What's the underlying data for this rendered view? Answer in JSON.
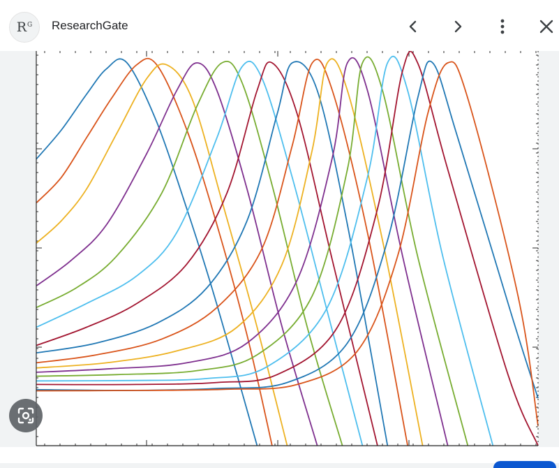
{
  "header": {
    "avatar_text": "R",
    "avatar_sup": "G",
    "site_name": "ResearchGate",
    "prev_icon": "chevron-left-icon",
    "next_icon": "chevron-right-icon",
    "more_icon": "more-vert-icon",
    "close_icon": "close-icon"
  },
  "lens": {
    "icon": "camera-lens-icon"
  },
  "colors": {
    "series": [
      "#1f77b4",
      "#d95319",
      "#edb120",
      "#7e2f8e",
      "#77ac30",
      "#4dbeee",
      "#a2142f"
    ]
  },
  "chart_data": {
    "type": "line",
    "title": "",
    "xlabel": "",
    "ylabel": "",
    "grid": false,
    "legend": "none",
    "note": "Axis tick labels are cropped out of view; values are in relative plot units (x: 0–100 of visible width, y: 0–100 of visible height).",
    "series": [
      {
        "values": [
          [
            0,
            72.6
          ],
          [
            5,
            80
          ],
          [
            10,
            89
          ],
          [
            14,
            95.5
          ],
          [
            18,
            97.1
          ],
          [
            24,
            82
          ],
          [
            30,
            60
          ],
          [
            35,
            40
          ],
          [
            40,
            18
          ],
          [
            44,
            0
          ]
        ]
      },
      {
        "values": [
          [
            0,
            61.5
          ],
          [
            5,
            68
          ],
          [
            10,
            78
          ],
          [
            15,
            88
          ],
          [
            20,
            96.5
          ],
          [
            24,
            96.5
          ],
          [
            30,
            80
          ],
          [
            36,
            56
          ],
          [
            42,
            28
          ],
          [
            47,
            0
          ]
        ]
      },
      {
        "values": [
          [
            0,
            51.3
          ],
          [
            5,
            57
          ],
          [
            10,
            65
          ],
          [
            16,
            79
          ],
          [
            22,
            93
          ],
          [
            26,
            96.5
          ],
          [
            31,
            88
          ],
          [
            37,
            62
          ],
          [
            44,
            30
          ],
          [
            50,
            0
          ]
        ]
      },
      {
        "values": [
          [
            0,
            40.5
          ],
          [
            7,
            47
          ],
          [
            14,
            56
          ],
          [
            22,
            74
          ],
          [
            28,
            90
          ],
          [
            32,
            97
          ],
          [
            36,
            90
          ],
          [
            42,
            65
          ],
          [
            49,
            30
          ],
          [
            56,
            0
          ]
        ]
      },
      {
        "values": [
          [
            0,
            35
          ],
          [
            8,
            40
          ],
          [
            16,
            48
          ],
          [
            25,
            64
          ],
          [
            32,
            86
          ],
          [
            37,
            97
          ],
          [
            41,
            92
          ],
          [
            47,
            66
          ],
          [
            54,
            30
          ],
          [
            61,
            0
          ]
        ]
      },
      {
        "values": [
          [
            0,
            30
          ],
          [
            10,
            36
          ],
          [
            20,
            43
          ],
          [
            28,
            54
          ],
          [
            36,
            78
          ],
          [
            41,
            96
          ],
          [
            45,
            93
          ],
          [
            51,
            68
          ],
          [
            58,
            34
          ],
          [
            65,
            0
          ]
        ]
      },
      {
        "values": [
          [
            0,
            25.4
          ],
          [
            10,
            30
          ],
          [
            20,
            36
          ],
          [
            30,
            46
          ],
          [
            38,
            64
          ],
          [
            44,
            90
          ],
          [
            47,
            97
          ],
          [
            52,
            84
          ],
          [
            59,
            47
          ],
          [
            68,
            0
          ]
        ]
      },
      {
        "values": [
          [
            0,
            23.5
          ],
          [
            12,
            26
          ],
          [
            24,
            31
          ],
          [
            34,
            40
          ],
          [
            42,
            57
          ],
          [
            48,
            84
          ],
          [
            51,
            97
          ],
          [
            56,
            90
          ],
          [
            62,
            56
          ],
          [
            70,
            0
          ]
        ]
      },
      {
        "values": [
          [
            0,
            21
          ],
          [
            12,
            23
          ],
          [
            25,
            27
          ],
          [
            36,
            35
          ],
          [
            45,
            50
          ],
          [
            51,
            76
          ],
          [
            55,
            97
          ],
          [
            59,
            90
          ],
          [
            66,
            54
          ],
          [
            74,
            0
          ]
        ]
      },
      {
        "values": [
          [
            0,
            19.7
          ],
          [
            14,
            21
          ],
          [
            28,
            24
          ],
          [
            40,
            30
          ],
          [
            49,
            46
          ],
          [
            55,
            75
          ],
          [
            58,
            97
          ],
          [
            62,
            90
          ],
          [
            69,
            52
          ],
          [
            77,
            0
          ]
        ]
      },
      {
        "values": [
          [
            0,
            18.6
          ],
          [
            15,
            19.5
          ],
          [
            30,
            21
          ],
          [
            42,
            26
          ],
          [
            52,
            42
          ],
          [
            59,
            73
          ],
          [
            62,
            97
          ],
          [
            66,
            90
          ],
          [
            73,
            48
          ],
          [
            82,
            0
          ]
        ]
      },
      {
        "values": [
          [
            0,
            17.6
          ],
          [
            16,
            18
          ],
          [
            32,
            19
          ],
          [
            44,
            23
          ],
          [
            55,
            38
          ],
          [
            62,
            70
          ],
          [
            65,
            97
          ],
          [
            69,
            90
          ],
          [
            76,
            48
          ],
          [
            86,
            0
          ]
        ]
      },
      {
        "values": [
          [
            0,
            16.4
          ],
          [
            18,
            16.5
          ],
          [
            34,
            17
          ],
          [
            46,
            20
          ],
          [
            58,
            35
          ],
          [
            66,
            68
          ],
          [
            70,
            97
          ],
          [
            74,
            90
          ],
          [
            81,
            48
          ],
          [
            91,
            0
          ]
        ]
      },
      {
        "values": [
          [
            0,
            15.5
          ],
          [
            20,
            15.5
          ],
          [
            36,
            16
          ],
          [
            48,
            18
          ],
          [
            60,
            30
          ],
          [
            68,
            60
          ],
          [
            73,
            95
          ],
          [
            76,
            97
          ],
          [
            82,
            70
          ],
          [
            94,
            18
          ],
          [
            100,
            0
          ]
        ]
      },
      {
        "values": [
          [
            0,
            14.2
          ],
          [
            20,
            14
          ],
          [
            36,
            14.5
          ],
          [
            50,
            16
          ],
          [
            62,
            26
          ],
          [
            70,
            52
          ],
          [
            76,
            88
          ],
          [
            79,
            97
          ],
          [
            84,
            78
          ],
          [
            95,
            32
          ],
          [
            100,
            12
          ]
        ]
      },
      {
        "values": [
          [
            0,
            13.9
          ],
          [
            22,
            14
          ],
          [
            38,
            14.3
          ],
          [
            52,
            15.5
          ],
          [
            64,
            24
          ],
          [
            72,
            48
          ],
          [
            78,
            84
          ],
          [
            82,
            97
          ],
          [
            86,
            88
          ],
          [
            96,
            38
          ],
          [
            100,
            5
          ]
        ]
      }
    ]
  }
}
